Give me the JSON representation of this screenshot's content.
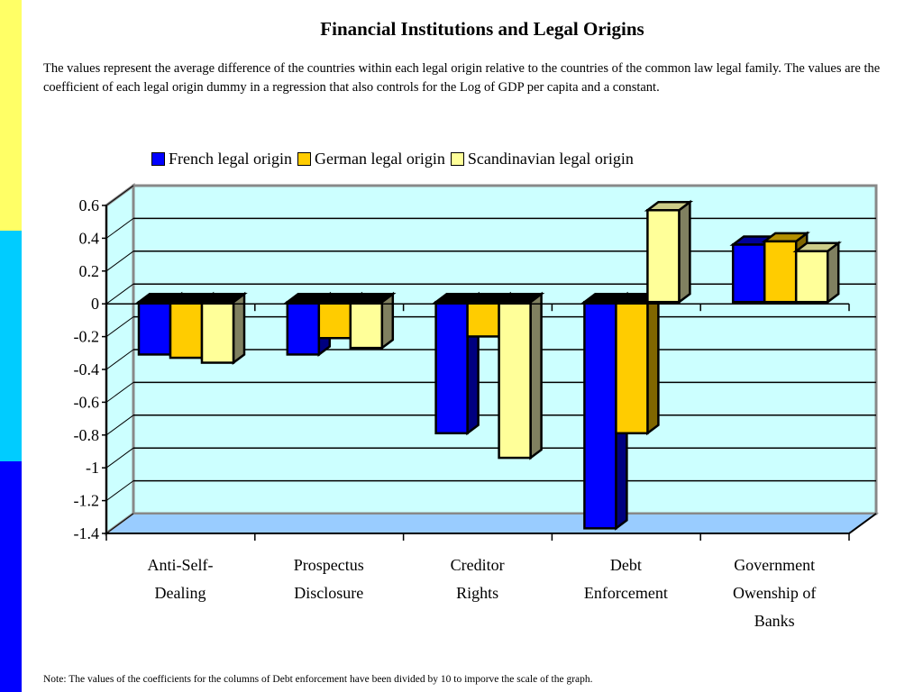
{
  "title": "Financial Institutions and Legal Origins",
  "description": "The values represent the average difference of the countries within each legal origin relative to the countries of the common law legal family.  The values are the coefficient of each legal origin dummy in a regression that also controls for the Log of GDP per capita and a constant.",
  "note": "Note:  The values of the coefficients for the columns of Debt enforcement have been divided by 10 to imporve the scale of the graph.",
  "side_strip_colors": [
    "#ffff66",
    "#00ccff",
    "#0000ff"
  ],
  "chart_data": {
    "type": "bar",
    "style": "3d-clustered",
    "categories": [
      "Anti-Self-Dealing",
      "Prospectus Disclosure",
      "Creditor Rights",
      "Debt Enforcement",
      "Government Owenship of Banks"
    ],
    "category_lines": [
      [
        "Anti-Self-",
        "Dealing"
      ],
      [
        "Prospectus",
        "Disclosure"
      ],
      [
        "Creditor",
        "Rights"
      ],
      [
        "Debt",
        "Enforcement"
      ],
      [
        "Government",
        "Owenship of",
        "Banks"
      ]
    ],
    "series": [
      {
        "name": "French legal origin",
        "color": "#0000ff",
        "values": [
          -0.32,
          -0.32,
          -0.8,
          -1.38,
          0.35
        ]
      },
      {
        "name": "German legal origin",
        "color": "#ffcc00",
        "values": [
          -0.34,
          -0.22,
          -0.21,
          -0.8,
          0.37
        ]
      },
      {
        "name": "Scandinavian legal origin",
        "color": "#ffff99",
        "values": [
          -0.37,
          -0.28,
          -0.95,
          0.56,
          0.31
        ]
      }
    ],
    "ylim": [
      -1.4,
      0.6
    ],
    "yticks": [
      "0.6",
      "0.4",
      "0.2",
      "0",
      "-0.2",
      "-0.4",
      "-0.6",
      "-0.8",
      "-1",
      "-1.2",
      "-1.4"
    ],
    "grid": true,
    "legend": "top",
    "wall_color": "#ccffff",
    "floor_color": "#99ccff"
  }
}
